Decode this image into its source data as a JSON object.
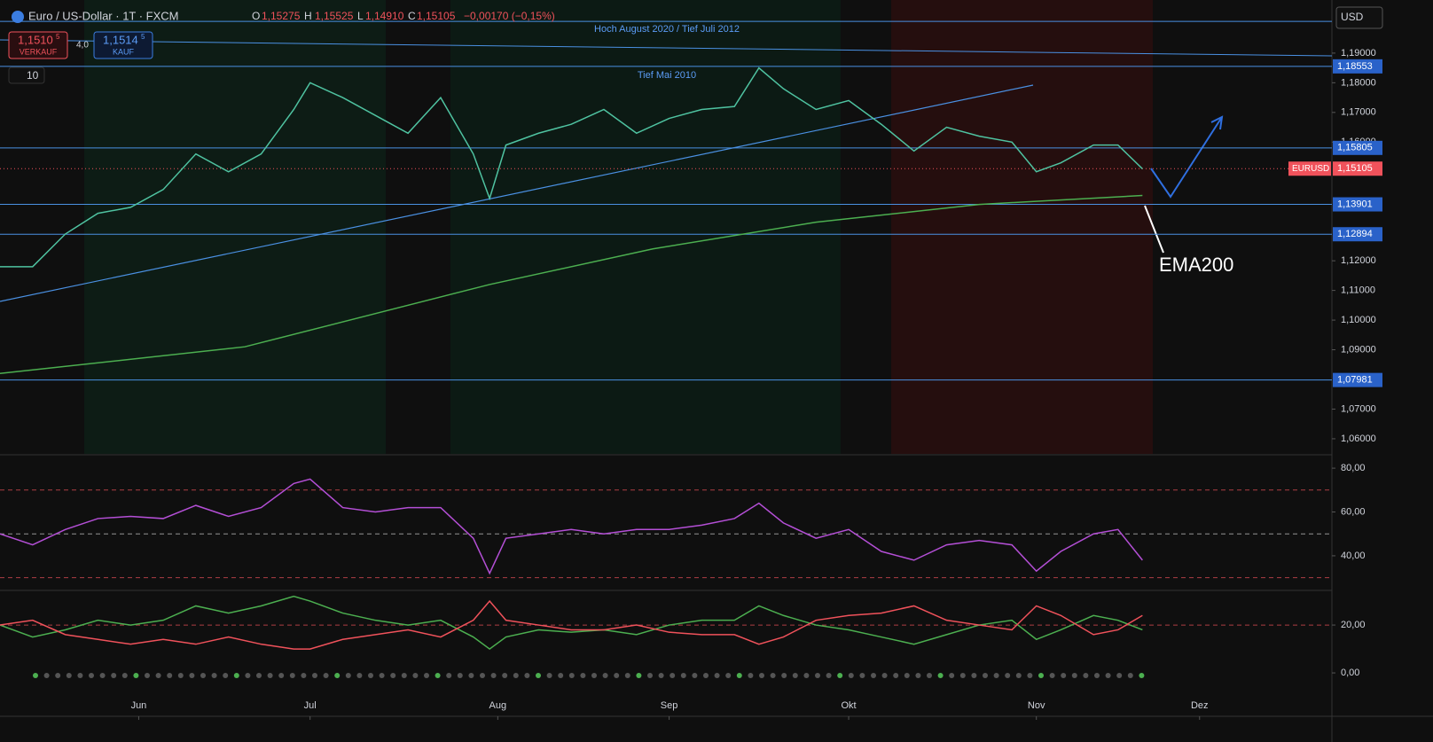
{
  "ui": {
    "title": "Euro / US-Dollar · 1T · FXCM",
    "o": "O",
    "open": "1,15275",
    "h": "H",
    "high": "1,15525",
    "l": "L",
    "low": "1,14910",
    "c": "C",
    "close": "1,15105",
    "change": "−0,00170 (−0,15%)",
    "sell_price": "1,1510",
    "sell_sup": "5",
    "sell": "VERKAUF",
    "spread": "4,0",
    "buy_price": "1,1514",
    "buy_sup": "5",
    "buy": "KAUF",
    "interval": "10",
    "currency": "USD"
  },
  "annotations": [
    "Hoch August 2020 / Tief Juli 2012",
    "Tief Mai 2010",
    "EMA200"
  ],
  "chart_data": [
    {
      "type": "line",
      "xlim": [
        0,
        163
      ],
      "ylim": [
        1.0549,
        1.2079
      ],
      "xticks": [
        {
          "value": 17,
          "label": "Jun"
        },
        {
          "value": 38,
          "label": "Jul"
        },
        {
          "value": 61,
          "label": "Aug"
        },
        {
          "value": 82,
          "label": "Sep"
        },
        {
          "value": 104,
          "label": "Okt"
        },
        {
          "value": 127,
          "label": "Nov"
        },
        {
          "value": 147,
          "label": "Dez"
        }
      ],
      "yticks": [
        {
          "value": 1.19,
          "label": "1,19000"
        },
        {
          "value": 1.18,
          "label": "1,18000"
        },
        {
          "value": 1.17,
          "label": "1,17000"
        },
        {
          "value": 1.16,
          "label": "1,16000"
        },
        {
          "value": 1.12,
          "label": "1,12000"
        },
        {
          "value": 1.11,
          "label": "1,11000"
        },
        {
          "value": 1.1,
          "label": "1,10000"
        },
        {
          "value": 1.09,
          "label": "1,09000"
        },
        {
          "value": 1.07,
          "label": "1,07000"
        },
        {
          "value": 1.06,
          "label": "1,06000"
        }
      ],
      "x": [
        0,
        4,
        8,
        12,
        16,
        20,
        24,
        28,
        32,
        36,
        38,
        42,
        46,
        50,
        54,
        58,
        60,
        62,
        66,
        70,
        74,
        78,
        82,
        86,
        90,
        93,
        96,
        100,
        104,
        108,
        112,
        116,
        120,
        124,
        127,
        130,
        134,
        137,
        140
      ],
      "series": [
        {
          "color": "#4fc3a1",
          "values": [
            1.118,
            1.118,
            1.129,
            1.136,
            1.138,
            1.144,
            1.156,
            1.15,
            1.156,
            1.171,
            1.18,
            1.175,
            1.169,
            1.163,
            1.175,
            1.156,
            1.141,
            1.159,
            1.163,
            1.166,
            1.171,
            1.163,
            1.168,
            1.171,
            1.172,
            1.185,
            1.178,
            1.171,
            1.174,
            1.166,
            1.157,
            1.165,
            1.162,
            1.16,
            1.15,
            1.153,
            1.159,
            1.159,
            1.151
          ]
        },
        {
          "color": "#4caf50",
          "x": [
            0,
            30,
            60,
            80,
            100,
            120,
            140
          ],
          "values": [
            1.082,
            1.091,
            1.112,
            1.124,
            1.133,
            1.139,
            1.142
          ]
        }
      ],
      "hlines": [
        1.2007
      ],
      "levels": [
        {
          "value": 1.18553,
          "label": "1,18553"
        },
        {
          "value": 1.15805,
          "label": "1,15805"
        },
        {
          "value": 1.13901,
          "label": "1,13901"
        },
        {
          "value": 1.12894,
          "label": "1,12894"
        },
        {
          "value": 1.07981,
          "label": "1,07981"
        }
      ],
      "current": {
        "value": 1.15105,
        "label": "1,15105",
        "name": "EURUSD"
      }
    },
    {
      "type": "line",
      "xlim": [
        0,
        163
      ],
      "ylim": [
        24.6,
        85.3
      ],
      "yticks": [
        {
          "value": 80,
          "label": "80,00"
        },
        {
          "value": 60,
          "label": "60,00"
        },
        {
          "value": 40,
          "label": "40,00"
        }
      ],
      "levels": [
        70,
        50,
        30
      ],
      "x": [
        0,
        4,
        8,
        12,
        16,
        20,
        24,
        28,
        32,
        36,
        38,
        42,
        46,
        50,
        54,
        58,
        60,
        62,
        66,
        70,
        74,
        78,
        82,
        86,
        90,
        93,
        96,
        100,
        104,
        108,
        112,
        116,
        120,
        124,
        127,
        130,
        134,
        137,
        140
      ],
      "series": [
        {
          "color": "#b44fd6",
          "values": [
            50,
            45,
            52,
            57,
            58,
            57,
            63,
            58,
            62,
            73,
            75,
            62,
            60,
            62,
            62,
            48,
            32,
            48,
            50,
            52,
            50,
            52,
            52,
            54,
            57,
            64,
            55,
            48,
            52,
            42,
            38,
            45,
            47,
            45,
            33,
            42,
            50,
            52,
            38
          ]
        }
      ]
    },
    {
      "type": "line",
      "xlim": [
        0,
        163
      ],
      "ylim": [
        -5.9,
        34.1
      ],
      "yticks": [
        {
          "value": 20,
          "label": "20,00"
        },
        {
          "value": 0,
          "label": "0,00"
        }
      ],
      "levels": [
        20
      ],
      "x": [
        0,
        4,
        8,
        12,
        16,
        20,
        24,
        28,
        32,
        36,
        38,
        42,
        46,
        50,
        54,
        58,
        60,
        62,
        66,
        70,
        74,
        78,
        82,
        86,
        90,
        93,
        96,
        100,
        104,
        108,
        112,
        116,
        120,
        124,
        127,
        130,
        134,
        137,
        140
      ],
      "series": [
        {
          "color": "#4caf50",
          "values": [
            20,
            15,
            18,
            22,
            20,
            22,
            28,
            25,
            28,
            32,
            30,
            25,
            22,
            20,
            22,
            15,
            10,
            15,
            18,
            17,
            18,
            16,
            20,
            22,
            22,
            28,
            24,
            20,
            18,
            15,
            12,
            16,
            20,
            22,
            14,
            18,
            24,
            22,
            18
          ]
        },
        {
          "color": "#f0525b",
          "values": [
            20,
            22,
            16,
            14,
            12,
            14,
            12,
            15,
            12,
            10,
            10,
            14,
            16,
            18,
            15,
            22,
            30,
            22,
            20,
            18,
            18,
            20,
            17,
            16,
            16,
            12,
            15,
            22,
            24,
            25,
            28,
            22,
            20,
            18,
            28,
            24,
            16,
            18,
            24
          ]
        }
      ]
    }
  ]
}
